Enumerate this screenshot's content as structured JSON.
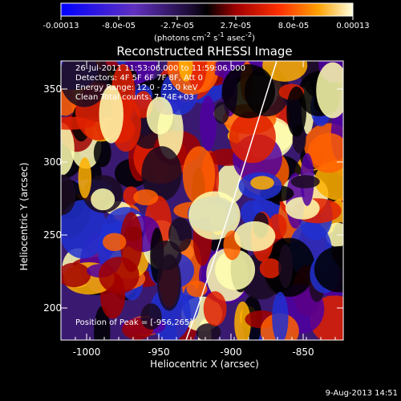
{
  "colorbar": {
    "ticks": [
      "-0.00013",
      "-8.0e-05",
      "-2.7e-05",
      "2.7e-05",
      "8.0e-05",
      "0.00013"
    ],
    "units_html": "(photons cm<sup>-2</sup> s<sup>-1</sup> asec<sup>-2</sup>)",
    "range": [
      -0.00013,
      0.00013
    ]
  },
  "title": "Reconstructed RHESSI Image",
  "info": {
    "line1": "26-Jul-2011 11:53:06.000 to 11:59:06.000",
    "line2": "Detectors: 4F 5F 6F 7F 8F, Att 0",
    "line3": "Energy Range: 12.0 - 25.0 keV",
    "line4": "Clean    Total counts: 7.74E+03"
  },
  "peak_text": "Position of Peak = [-956,265]",
  "axes": {
    "xlabel": "Heliocentric X (arcsec)",
    "ylabel": "Heliocentric Y (arcsec)",
    "xticks": [
      -1000,
      -950,
      -900,
      -850
    ],
    "yticks": [
      200,
      250,
      300,
      350
    ],
    "xlim": [
      -1013,
      -826
    ],
    "ylim": [
      176,
      372
    ]
  },
  "stamp": "9-Aug-2013 14:51",
  "colors": {
    "background": "#000000",
    "text": "#ffffff",
    "limb": "#ffffff"
  }
}
